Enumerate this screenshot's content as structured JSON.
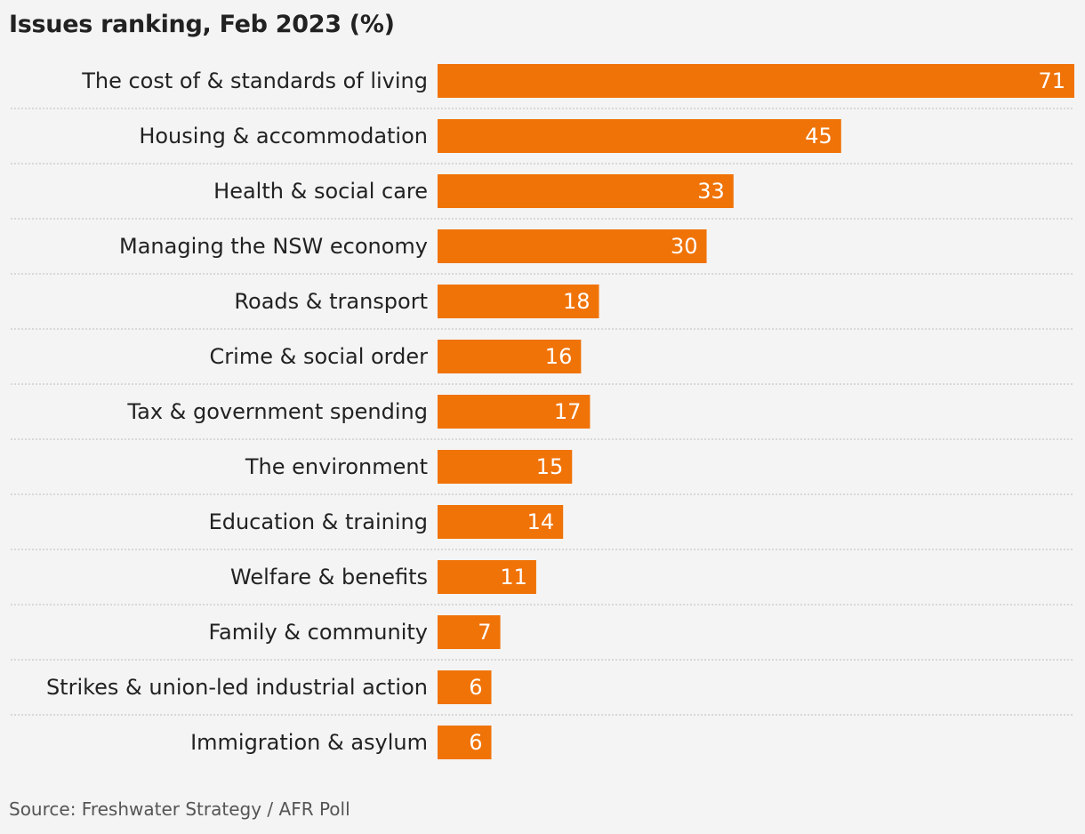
{
  "chart_data": {
    "type": "bar",
    "orientation": "horizontal",
    "title": "Issues ranking, Feb 2023 (%)",
    "categories": [
      "The cost of & standards of living",
      "Housing & accommodation",
      "Health & social care",
      "Managing the NSW economy",
      "Roads & transport",
      "Crime & social order",
      "Tax & government spending",
      "The environment",
      "Education & training",
      "Welfare & benefits",
      "Family & community",
      "Strikes & union-led industrial action",
      "Immigration & asylum"
    ],
    "values": [
      71,
      45,
      33,
      30,
      18,
      16,
      17,
      15,
      14,
      11,
      7,
      6,
      6
    ],
    "xlim": [
      0,
      71
    ],
    "grid": false,
    "data_labels": true,
    "source": "Source: Freshwater Strategy / AFR Poll"
  },
  "colors": {
    "bar": "#f07308",
    "background": "#f4f4f4",
    "label_text": "#222222",
    "value_text": "#ffffff",
    "divider": "#bbbbbb"
  }
}
